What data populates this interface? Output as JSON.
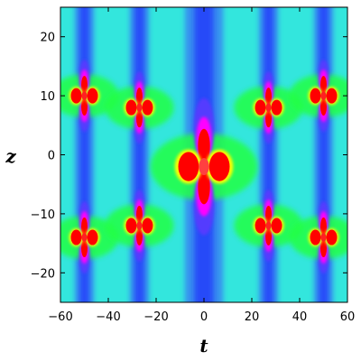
{
  "chart_data": {
    "type": "heatmap",
    "title": "",
    "xlabel": "t",
    "ylabel": "z",
    "xlim": [
      -60,
      60
    ],
    "ylim": [
      -25,
      25
    ],
    "x_ticks": [
      -60,
      -40,
      -20,
      0,
      20,
      40,
      60
    ],
    "y_ticks": [
      -20,
      -10,
      0,
      10,
      20
    ],
    "x_tick_labels": [
      "−60",
      "−40",
      "−20",
      "0",
      "20",
      "40",
      "60"
    ],
    "y_tick_labels": [
      "−20",
      "−10",
      "0",
      "10",
      "20"
    ],
    "colormap": [
      "#1a1aff",
      "#00ffff",
      "#00ff66",
      "#ffff00",
      "#ff0000",
      "#ff00ff"
    ],
    "background_color": "#33e6dd",
    "grid": false,
    "peaks": [
      {
        "t": -50,
        "z": 10
      },
      {
        "t": -27,
        "z": 8
      },
      {
        "t": 27,
        "z": 8
      },
      {
        "t": 50,
        "z": 10
      },
      {
        "t": -50,
        "z": -14
      },
      {
        "t": -27,
        "z": -12
      },
      {
        "t": 27,
        "z": -12
      },
      {
        "t": 50,
        "z": -14
      },
      {
        "t": 0,
        "z": -2
      }
    ]
  }
}
